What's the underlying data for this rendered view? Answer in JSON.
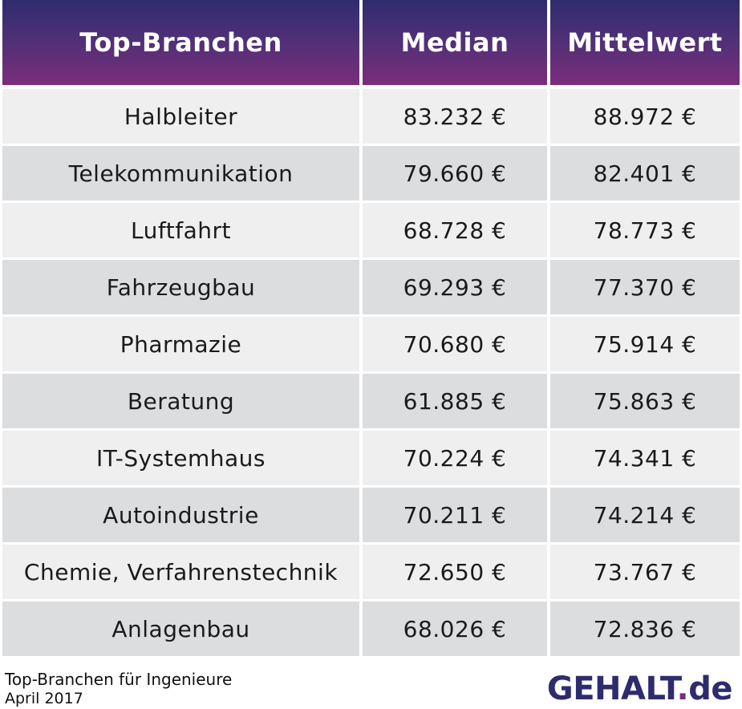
{
  "chart_data": {
    "type": "table",
    "columns": [
      "Top-Branchen",
      "Median",
      "Mittelwert"
    ],
    "rows": [
      {
        "branche": "Halbleiter",
        "median": "83.232 €",
        "mittelwert": "88.972 €"
      },
      {
        "branche": "Telekommunikation",
        "median": "79.660 €",
        "mittelwert": "82.401 €"
      },
      {
        "branche": "Luftfahrt",
        "median": "68.728 €",
        "mittelwert": "78.773 €"
      },
      {
        "branche": "Fahrzeugbau",
        "median": "69.293 €",
        "mittelwert": "77.370 €"
      },
      {
        "branche": "Pharmazie",
        "median": "70.680 €",
        "mittelwert": "75.914 €"
      },
      {
        "branche": "Beratung",
        "median": "61.885 €",
        "mittelwert": "75.863 €"
      },
      {
        "branche": "IT-Systemhaus",
        "median": "70.224 €",
        "mittelwert": "74.341 €"
      },
      {
        "branche": "Autoindustrie",
        "median": "70.211 €",
        "mittelwert": "74.214 €"
      },
      {
        "branche": "Chemie, Verfahrenstechnik",
        "median": "72.650 €",
        "mittelwert": "73.767 €"
      },
      {
        "branche": "Anlagenbau",
        "median": "68.026 €",
        "mittelwert": "72.836 €"
      }
    ],
    "row_colors": [
      "#efefef",
      "#dcdddf"
    ],
    "header_gradient": [
      "#2e2c6e",
      "#7a2d7a"
    ]
  },
  "footer": {
    "caption": "Top-Branchen für Ingenieure",
    "date": "April 2017"
  },
  "logo": {
    "main": "GEHALT",
    "dot": ".",
    "tld": "de"
  }
}
